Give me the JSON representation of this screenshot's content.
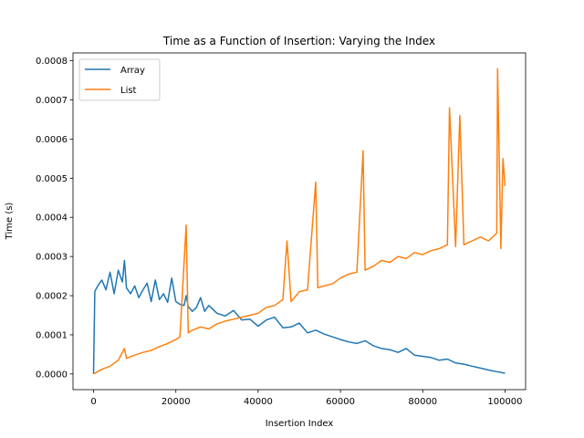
{
  "chart_data": {
    "type": "line",
    "title": "Time as a Function of Insertion: Varying the Index",
    "xlabel": "Insertion Index",
    "ylabel": "Time (s)",
    "xlim": [
      -5000,
      105000
    ],
    "ylim": [
      -4e-05,
      0.00082
    ],
    "xticks": [
      0,
      20000,
      40000,
      60000,
      80000,
      100000
    ],
    "xtick_labels": [
      "0",
      "20000",
      "40000",
      "60000",
      "80000",
      "100000"
    ],
    "yticks": [
      0,
      0.0001,
      0.0002,
      0.0003,
      0.0004,
      0.0005,
      0.0006,
      0.0007,
      0.0008
    ],
    "ytick_labels": [
      "0.0000",
      "0.0001",
      "0.0002",
      "0.0003",
      "0.0004",
      "0.0005",
      "0.0006",
      "0.0007",
      "0.0008"
    ],
    "grid": false,
    "legend_position": "top-left",
    "series": [
      {
        "name": "Array",
        "color": "#1f77b4",
        "x": [
          0,
          300,
          500,
          1000,
          2000,
          3000,
          4000,
          5000,
          6000,
          7000,
          7500,
          8000,
          9000,
          10000,
          11000,
          12000,
          13000,
          14000,
          15000,
          16000,
          17000,
          18000,
          19000,
          20000,
          21000,
          22000,
          22500,
          23000,
          24000,
          25000,
          26000,
          27000,
          28000,
          30000,
          32000,
          34000,
          36000,
          38000,
          40000,
          42000,
          44000,
          46000,
          48000,
          50000,
          52000,
          54000,
          56000,
          58000,
          60000,
          62000,
          64000,
          66000,
          68000,
          70000,
          72000,
          74000,
          76000,
          78000,
          80000,
          82000,
          84000,
          86000,
          88000,
          90000,
          92000,
          94000,
          96000,
          98000,
          100000
        ],
        "y": [
          0.0,
          0.00021,
          0.000215,
          0.000225,
          0.00024,
          0.000215,
          0.00026,
          0.000205,
          0.000265,
          0.000235,
          0.00029,
          0.00022,
          0.000205,
          0.000225,
          0.000195,
          0.000215,
          0.000232,
          0.000185,
          0.00024,
          0.00019,
          0.000205,
          0.000183,
          0.000245,
          0.000185,
          0.000178,
          0.000175,
          0.0002,
          0.000172,
          0.00016,
          0.00017,
          0.000195,
          0.00016,
          0.000175,
          0.000155,
          0.000148,
          0.000162,
          0.000138,
          0.00014,
          0.000122,
          0.000138,
          0.000145,
          0.000118,
          0.00012,
          0.00013,
          0.000105,
          0.000112,
          0.000102,
          9.5e-05,
          8.8e-05,
          8.2e-05,
          7.8e-05,
          8.5e-05,
          7.2e-05,
          6.5e-05,
          6.2e-05,
          5.5e-05,
          6.5e-05,
          4.8e-05,
          4.5e-05,
          4.2e-05,
          3.5e-05,
          3.8e-05,
          2.8e-05,
          2.5e-05,
          2e-05,
          1.5e-05,
          1e-05,
          6e-06,
          2e-06
        ]
      },
      {
        "name": "List",
        "color": "#ff7f0e",
        "x": [
          0,
          2000,
          4000,
          6000,
          7500,
          8000,
          10000,
          12000,
          14000,
          16000,
          18000,
          20000,
          21000,
          22500,
          23000,
          24000,
          26000,
          28000,
          30000,
          32000,
          34000,
          36000,
          38000,
          40000,
          42000,
          44000,
          46000,
          47000,
          48000,
          50000,
          52000,
          54000,
          54500,
          56000,
          58000,
          60000,
          62000,
          64000,
          65500,
          66000,
          68000,
          70000,
          72000,
          74000,
          76000,
          78000,
          80000,
          82000,
          84000,
          86000,
          86500,
          88000,
          89000,
          90000,
          92000,
          94000,
          96000,
          98000,
          98200,
          99000,
          99500,
          100000
        ],
        "y": [
          0.0,
          1.2e-05,
          2e-05,
          3.5e-05,
          6.5e-05,
          4e-05,
          4.8e-05,
          5.5e-05,
          6e-05,
          7e-05,
          7.8e-05,
          8.8e-05,
          9.5e-05,
          0.00038,
          0.000105,
          0.000112,
          0.00012,
          0.000115,
          0.000128,
          0.000135,
          0.00014,
          0.000145,
          0.00015,
          0.000155,
          0.00017,
          0.000175,
          0.00019,
          0.00034,
          0.000185,
          0.00021,
          0.000215,
          0.00049,
          0.00022,
          0.000225,
          0.00023,
          0.000245,
          0.000255,
          0.00026,
          0.00057,
          0.000265,
          0.000275,
          0.00029,
          0.000285,
          0.0003,
          0.000295,
          0.00031,
          0.000305,
          0.000315,
          0.00032,
          0.00033,
          0.00068,
          0.000325,
          0.00066,
          0.00033,
          0.00034,
          0.00035,
          0.00034,
          0.00036,
          0.00078,
          0.00032,
          0.00055,
          0.00048
        ]
      }
    ]
  }
}
